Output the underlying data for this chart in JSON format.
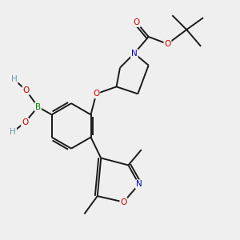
{
  "bg_color": "#efefef",
  "bond_color": "#1a1a1a",
  "colors": {
    "O": "#cc0000",
    "N": "#0000cc",
    "B": "#008800",
    "H": "#6699aa",
    "C": "#1a1a1a"
  },
  "figsize": [
    3.0,
    3.0
  ],
  "dpi": 100,
  "lw": 1.4,
  "fs": 7.5
}
